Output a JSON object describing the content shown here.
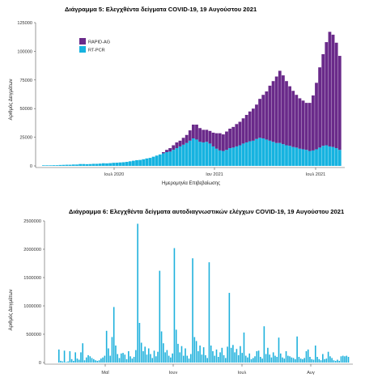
{
  "colors": {
    "rapid_ag": "#6A2A8A",
    "rt_pcr": "#16B3E0",
    "bar": "#1CB0DC",
    "axis": "#555555"
  },
  "chart_data": [
    {
      "type": "bar",
      "stacked": true,
      "title": "Διάγραμμα 5: Ελεγχθέντα δείγματα COVID-19, 19 Αυγούστου 2021",
      "xlabel": "Ημερομηνία Επιβεβαίωσης",
      "ylabel": "Αριθμός Δειγμάτων",
      "ylim": [
        0,
        125000
      ],
      "yticks": [
        "0",
        "25000",
        "50000",
        "75000",
        "100000",
        "125000"
      ],
      "xticks": [
        "Ιουλ 2020",
        "Ιαν 2021",
        "Ιουλ 2021"
      ],
      "legend": {
        "position": "top-left",
        "entries": [
          "RAPID-AG",
          "RT-PCR"
        ]
      },
      "x_range": [
        "2020-03",
        "2021-08-19"
      ],
      "series": [
        {
          "name": "RT-PCR",
          "color": "#16B3E0",
          "values": [
            500,
            500,
            500,
            600,
            600,
            800,
            900,
            1000,
            1000,
            1200,
            1200,
            1600,
            1600,
            1500,
            1600,
            1800,
            1800,
            2000,
            2300,
            2200,
            2400,
            2700,
            2800,
            3000,
            3200,
            3500,
            4000,
            4500,
            5000,
            5200,
            5800,
            6500,
            7000,
            8000,
            9000,
            10000,
            11000,
            12000,
            12500,
            14000,
            15500,
            17000,
            18500,
            20000,
            22000,
            24000,
            23000,
            21000,
            20500,
            21000,
            19500,
            17000,
            15000,
            13500,
            13000,
            14000,
            15500,
            16000,
            17000,
            18000,
            19500,
            20500,
            21500,
            22000,
            23500,
            24500,
            24000,
            23000,
            22000,
            21000,
            20000,
            20000,
            19000,
            18000,
            17500,
            16500,
            16000,
            15000,
            14500,
            14000,
            13000,
            13500,
            14500,
            16000,
            17500,
            18000,
            17000,
            16500,
            15500,
            14000
          ]
        },
        {
          "name": "RAPID-AG",
          "color": "#6A2A8A",
          "values": [
            0,
            0,
            0,
            0,
            0,
            0,
            0,
            0,
            0,
            0,
            0,
            0,
            0,
            0,
            0,
            0,
            0,
            0,
            0,
            0,
            0,
            0,
            0,
            0,
            0,
            0,
            0,
            0,
            0,
            0,
            0,
            0,
            0,
            0,
            0,
            0,
            1000,
            2000,
            3000,
            4000,
            5000,
            5000,
            6000,
            7000,
            9000,
            12000,
            13000,
            12000,
            11000,
            10500,
            11000,
            12000,
            13500,
            15000,
            14500,
            16000,
            17000,
            18000,
            19500,
            20500,
            22000,
            24000,
            26000,
            28000,
            30000,
            34000,
            38000,
            42000,
            48000,
            53000,
            58000,
            63000,
            60000,
            56000,
            52000,
            49000,
            46000,
            44000,
            42500,
            41000,
            42000,
            48000,
            58000,
            70000,
            80000,
            90000,
            100000,
            98000,
            92000,
            82000
          ]
        }
      ]
    },
    {
      "type": "bar",
      "title": "Διάγραμμα 6: Ελεγχθέντα δείγματα αυτοδιαγνωστικών ελέγχων COVID-19, 19 Αυγούστου 2021",
      "xlabel": "",
      "ylabel": "Αριθμός Δειγμάτων",
      "ylim": [
        0,
        2500000
      ],
      "yticks": [
        "0",
        "500000",
        "1000000",
        "1500000",
        "2000000",
        "2500000"
      ],
      "xticks": [
        "Μαΐ",
        "Ιουν",
        "Ιουλ",
        "Αυγ"
      ],
      "series": [
        {
          "name": "",
          "color": "#1CB0DC",
          "values": [
            230000,
            30000,
            20000,
            210000,
            10000,
            20000,
            200000,
            60000,
            30000,
            180000,
            70000,
            50000,
            180000,
            340000,
            40000,
            90000,
            130000,
            110000,
            80000,
            60000,
            40000,
            30000,
            40000,
            70000,
            90000,
            120000,
            560000,
            250000,
            120000,
            450000,
            980000,
            300000,
            150000,
            80000,
            160000,
            170000,
            140000,
            60000,
            200000,
            110000,
            70000,
            100000,
            220000,
            2450000,
            700000,
            350000,
            200000,
            280000,
            140000,
            250000,
            150000,
            80000,
            210000,
            110000,
            190000,
            1620000,
            550000,
            340000,
            180000,
            220000,
            120000,
            90000,
            160000,
            2020000,
            580000,
            330000,
            180000,
            290000,
            120000,
            250000,
            120000,
            70000,
            150000,
            1840000,
            450000,
            380000,
            200000,
            300000,
            140000,
            270000,
            130000,
            80000,
            1770000,
            300000,
            200000,
            120000,
            230000,
            100000,
            180000,
            260000,
            130000,
            80000,
            280000,
            1230000,
            260000,
            310000,
            180000,
            240000,
            130000,
            290000,
            170000,
            530000,
            120000,
            90000,
            160000,
            60000,
            80000,
            110000,
            200000,
            210000,
            100000,
            70000,
            640000,
            150000,
            260000,
            140000,
            90000,
            180000,
            120000,
            100000,
            440000,
            160000,
            90000,
            70000,
            200000,
            120000,
            110000,
            90000,
            80000,
            60000,
            460000,
            100000,
            70000,
            60000,
            80000,
            200000,
            230000,
            100000,
            60000,
            50000,
            300000,
            100000,
            60000,
            40000,
            150000,
            60000,
            70000,
            190000,
            110000,
            80000,
            40000,
            30000,
            50000,
            30000,
            110000,
            120000,
            110000,
            120000,
            100000
          ]
        }
      ]
    }
  ]
}
